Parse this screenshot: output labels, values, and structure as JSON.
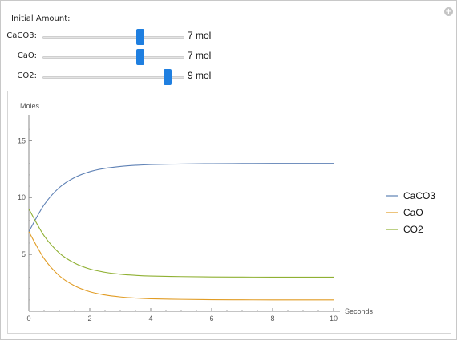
{
  "header": {
    "title": "Initial Amount:",
    "plus_icon": "plus-icon"
  },
  "controls": [
    {
      "label": "CaCO3:",
      "value": 7,
      "value_text": "7 mol"
    },
    {
      "label": "CaO:",
      "value": 7,
      "value_text": "7 mol"
    },
    {
      "label": "CO2:",
      "value": 9,
      "value_text": "9 mol"
    }
  ],
  "colors": {
    "accent": "#1f7fe0",
    "CaCO3": "#5e81b5",
    "CaO": "#e19c24",
    "CO2": "#8fb032"
  },
  "chart_data": {
    "type": "line",
    "xlabel": "Seconds",
    "ylabel": "Moles",
    "xlim": [
      0,
      10
    ],
    "ylim": [
      0,
      17
    ],
    "xticks": [
      0,
      2,
      4,
      6,
      8,
      10
    ],
    "yticks": [
      5,
      10,
      15
    ],
    "grid": false,
    "legend_position": "right",
    "x": [
      0,
      0.5,
      1,
      1.5,
      2,
      2.5,
      3,
      3.5,
      4,
      5,
      6,
      7,
      8,
      9,
      10
    ],
    "series": [
      {
        "name": "CaCO3",
        "values": [
          7.0,
          9.36,
          10.88,
          11.76,
          12.28,
          12.57,
          12.74,
          12.84,
          12.9,
          12.95,
          12.98,
          12.99,
          13.0,
          13.0,
          13.0
        ]
      },
      {
        "name": "CaO",
        "values": [
          7.0,
          4.64,
          3.12,
          2.24,
          1.72,
          1.43,
          1.26,
          1.16,
          1.1,
          1.05,
          1.02,
          1.01,
          1.0,
          1.0,
          1.0
        ]
      },
      {
        "name": "CO2",
        "values": [
          9.0,
          6.64,
          5.12,
          4.24,
          3.72,
          3.43,
          3.26,
          3.16,
          3.1,
          3.05,
          3.02,
          3.01,
          3.0,
          3.0,
          3.0
        ]
      }
    ]
  }
}
